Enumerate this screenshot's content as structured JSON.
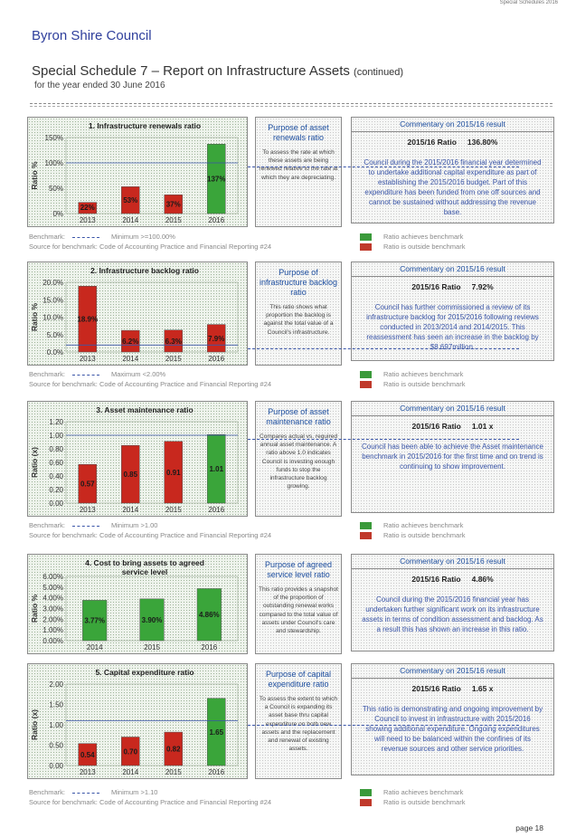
{
  "header": {
    "top_right": "Special Schedules 2016",
    "council": "Byron Shire Council",
    "title": "Special Schedule 7 – Report on Infrastructure Assets",
    "title_suffix": "(continued)",
    "subtitle": "for the year ended 30 June 2016"
  },
  "common": {
    "source_text": "Source for benchmark: Code of Accounting Practice and Financial Reporting #24",
    "achieves_label": "Ratio achieves benchmark",
    "outside_label": "Ratio is outside benchmark",
    "benchmark_label": "Benchmark:",
    "commentary_title": "Commentary on 2015/16 result",
    "achieves_color": "#3a9a3a",
    "outside_color": "#c0392b",
    "bar_color": "#c8281e",
    "bar_color_achieve": "#3aa53a"
  },
  "sections": [
    {
      "chart_title": "1. Infrastructure renewals ratio",
      "y_label": "Ratio %",
      "purpose_title": "Purpose of asset renewals ratio",
      "purpose_body": "To assess the rate at which these assets are being renewed relative to the rate at which they are depreciating.",
      "ratio_label": "2015/16 Ratio",
      "ratio_value": "136.80%",
      "commentary": "Council during the 2015/2016 financial year determined to undertake additional capital expenditure as part of establishing the 2015/2016 budget. Part of this expenditure has been funded from one off sources and cannot be sustained without addressing the revenue base.",
      "benchmark_value": "Minimum >=100.00%",
      "chart_data": {
        "type": "bar",
        "categories": [
          "2013",
          "2014",
          "2015",
          "2016"
        ],
        "values": [
          22,
          53,
          37,
          137
        ],
        "value_labels": [
          "22%",
          "53%",
          "37%",
          "137%"
        ],
        "achieves": [
          false,
          false,
          false,
          true
        ],
        "ylim": [
          0,
          150
        ],
        "yticks": [
          "0%",
          "50%",
          "100%",
          "150%"
        ],
        "benchmark": 100
      }
    },
    {
      "chart_title": "2. Infrastructure backlog ratio",
      "y_label": "Ratio %",
      "purpose_title": "Purpose of infrastructure backlog ratio",
      "purpose_body": "This ratio shows what proportion the backlog is against the total value of a Council's infrastructure.",
      "ratio_label": "2015/16 Ratio",
      "ratio_value": "7.92%",
      "commentary": "Council has further commissioned a review of its infrastructure backlog for 2015/2016 following reviews conducted in 2013/2014 and 2014/2015. This reassessment has seen an increase in the backlog by $8.697million.",
      "benchmark_value": "Maximum <2.00%",
      "chart_data": {
        "type": "bar",
        "categories": [
          "2013",
          "2014",
          "2015",
          "2016"
        ],
        "values": [
          18.9,
          6.2,
          6.3,
          7.9
        ],
        "value_labels": [
          "18.9%",
          "6.2%",
          "6.3%",
          "7.9%"
        ],
        "achieves": [
          false,
          false,
          false,
          false
        ],
        "ylim": [
          0,
          20
        ],
        "yticks": [
          "0.0%",
          "5.0%",
          "10.0%",
          "15.0%",
          "20.0%"
        ],
        "benchmark": 2
      }
    },
    {
      "chart_title": "3. Asset maintenance ratio",
      "y_label": "Ratio (x)",
      "purpose_title": "Purpose of asset maintenance ratio",
      "purpose_body": "Compares actual vs. required annual asset maintenance. A ratio above 1.0 indicates Council is investing enough funds to stop the infrastructure backlog growing.",
      "ratio_label": "2015/16 Ratio",
      "ratio_value": "1.01 x",
      "commentary": "Council has been able to achieve the Asset maintenance benchmark in 2015/2016 for the first time and on trend is continuing to show improvement.",
      "benchmark_value": "Minimum >1.00",
      "chart_data": {
        "type": "bar",
        "categories": [
          "2013",
          "2014",
          "2015",
          "2016"
        ],
        "values": [
          0.57,
          0.85,
          0.91,
          1.01
        ],
        "value_labels": [
          "0.57",
          "0.85",
          "0.91",
          "1.01"
        ],
        "achieves": [
          false,
          false,
          false,
          true
        ],
        "ylim": [
          0,
          1.2
        ],
        "yticks": [
          "0.00",
          "0.20",
          "0.40",
          "0.60",
          "0.80",
          "1.00",
          "1.20"
        ],
        "benchmark": 1
      }
    },
    {
      "chart_title": "4. Cost to bring assets to agreed service level",
      "y_label": "Ratio %",
      "purpose_title": "Purpose of agreed service level ratio",
      "purpose_body": "This ratio provides a snapshot of the proportion of outstanding renewal works compared to the total value of assets under Council's care and stewardship.",
      "ratio_label": "2015/16 Ratio",
      "ratio_value": "4.86%",
      "commentary": "Council during the 2015/2016 financial year has undertaken further significant work on its infrastructure assets in terms of condition assessment and backlog. As a result this has shown an increase in this ratio.",
      "benchmark_value": "",
      "chart_data": {
        "type": "bar",
        "categories": [
          "2014",
          "2015",
          "2016"
        ],
        "values": [
          3.77,
          3.9,
          4.86
        ],
        "value_labels": [
          "3.77%",
          "3.90%",
          "4.86%"
        ],
        "achieves": [
          true,
          true,
          true
        ],
        "ylim": [
          0,
          6
        ],
        "yticks": [
          "0.00%",
          "1.00%",
          "2.00%",
          "3.00%",
          "4.00%",
          "5.00%",
          "6.00%"
        ],
        "benchmark": null
      }
    },
    {
      "chart_title": "5. Capital expenditure ratio",
      "y_label": "Ratio (x)",
      "purpose_title": "Purpose of capital expenditure ratio",
      "purpose_body": "To assess the extent to which a Council is expanding its asset base thru capital expenditure on both new assets and the replacement and renewal of existing assets.",
      "ratio_label": "2015/16 Ratio",
      "ratio_value": "1.65 x",
      "commentary": "This ratio is demonstrating and ongoing improvement by Council to invest in infrastructure with 2015/2016 showing additional expenditure. Ongoing expenditures will need to be balanced within the confines of its revenue sources and other service priorities.",
      "benchmark_value": "Minimum >1.10",
      "chart_data": {
        "type": "bar",
        "categories": [
          "2013",
          "2014",
          "2015",
          "2016"
        ],
        "values": [
          0.54,
          0.7,
          0.82,
          1.65
        ],
        "value_labels": [
          "0.54",
          "0.70",
          "0.82",
          "1.65"
        ],
        "achieves": [
          false,
          false,
          false,
          true
        ],
        "ylim": [
          0,
          2
        ],
        "yticks": [
          "0.00",
          "0.50",
          "1.00",
          "1.50",
          "2.00"
        ],
        "benchmark": 1.1
      }
    }
  ],
  "footer": {
    "page": "page 18"
  }
}
